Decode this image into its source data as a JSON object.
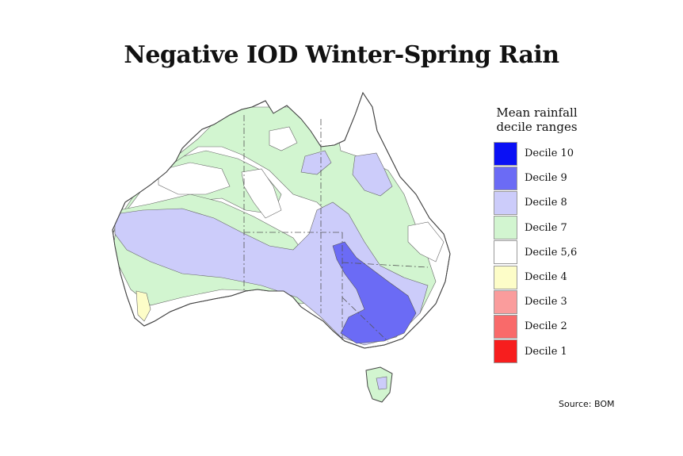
{
  "title": "Negative IOD Winter-Spring Rain",
  "legend": {
    "title_line1": "Mean rainfall",
    "title_line2": "decile ranges",
    "items": [
      {
        "label": "Decile 10",
        "color": "#0a10f5"
      },
      {
        "label": "Decile 9",
        "color": "#6b6bf5"
      },
      {
        "label": "Decile 8",
        "color": "#ccccfa"
      },
      {
        "label": "Decile 7",
        "color": "#d2f5d0"
      },
      {
        "label": "Decile 5,6",
        "color": "#ffffff"
      },
      {
        "label": "Decile 4",
        "color": "#fdfdc8"
      },
      {
        "label": "Decile 3",
        "color": "#fa9c9c"
      },
      {
        "label": "Decile 2",
        "color": "#f96a6a"
      },
      {
        "label": "Decile 1",
        "color": "#f71e1e"
      }
    ]
  },
  "source": "Source: BOM"
}
